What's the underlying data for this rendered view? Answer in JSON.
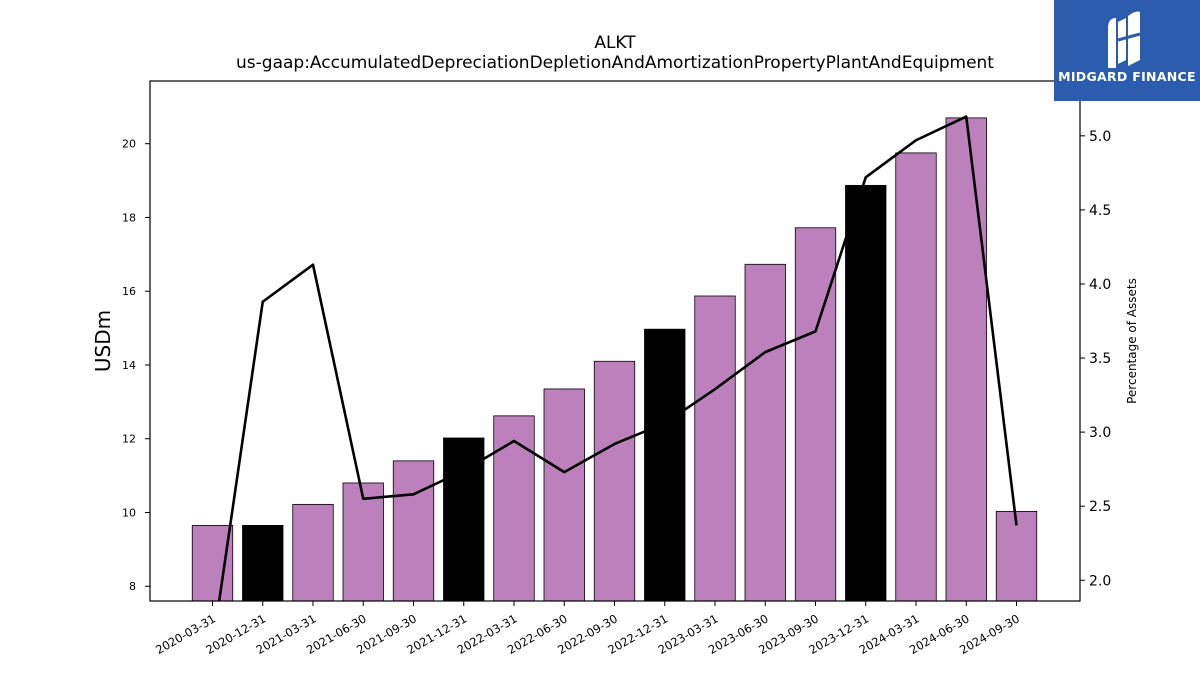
{
  "chart_data": {
    "type": "bar",
    "title": "ALKT",
    "subtitle": "us-gaap:AccumulatedDepreciationDepletionAndAmortizationPropertyPlantAndEquipment",
    "ylabel": "USDm",
    "ylabel_right": "Percentage of Assets",
    "categories": [
      "2020-03-31",
      "2020-12-31",
      "2021-03-31",
      "2021-06-30",
      "2021-09-30",
      "2021-12-31",
      "2022-03-31",
      "2022-06-30",
      "2022-09-30",
      "2022-12-31",
      "2023-03-31",
      "2023-06-30",
      "2023-09-30",
      "2023-12-31",
      "2024-03-31",
      "2024-06-30",
      "2024-09-30"
    ],
    "series": [
      {
        "kind": "bar",
        "axis": "left",
        "values": [
          9.65,
          9.65,
          10.22,
          10.8,
          11.4,
          12.02,
          12.62,
          13.35,
          14.1,
          14.97,
          15.87,
          16.73,
          17.72,
          18.87,
          19.75,
          20.7,
          10.03
        ],
        "highlight": [
          false,
          true,
          false,
          false,
          false,
          true,
          false,
          false,
          false,
          true,
          false,
          false,
          false,
          true,
          false,
          false,
          false
        ]
      },
      {
        "kind": "line",
        "axis": "right",
        "values": [
          1.55,
          3.88,
          4.13,
          2.55,
          2.58,
          2.74,
          2.94,
          2.73,
          2.92,
          3.06,
          3.29,
          3.54,
          3.68,
          4.72,
          4.97,
          5.13,
          2.37
        ]
      }
    ],
    "ylim": [
      7.6,
      21.7
    ],
    "yticks": [
      8,
      10,
      12,
      14,
      16,
      18,
      20
    ],
    "ylim_right": [
      1.86,
      5.37
    ],
    "yticks_right": [
      "2.0",
      "2.5",
      "3.0",
      "3.5",
      "4.0",
      "4.5",
      "5.0"
    ],
    "colors": {
      "bar": "#bc80bd",
      "highlight": "#000000",
      "line": "#000000"
    },
    "grid": false
  },
  "logo": {
    "text": "MIDGARD FINANCE",
    "background": "#2b5cad"
  }
}
